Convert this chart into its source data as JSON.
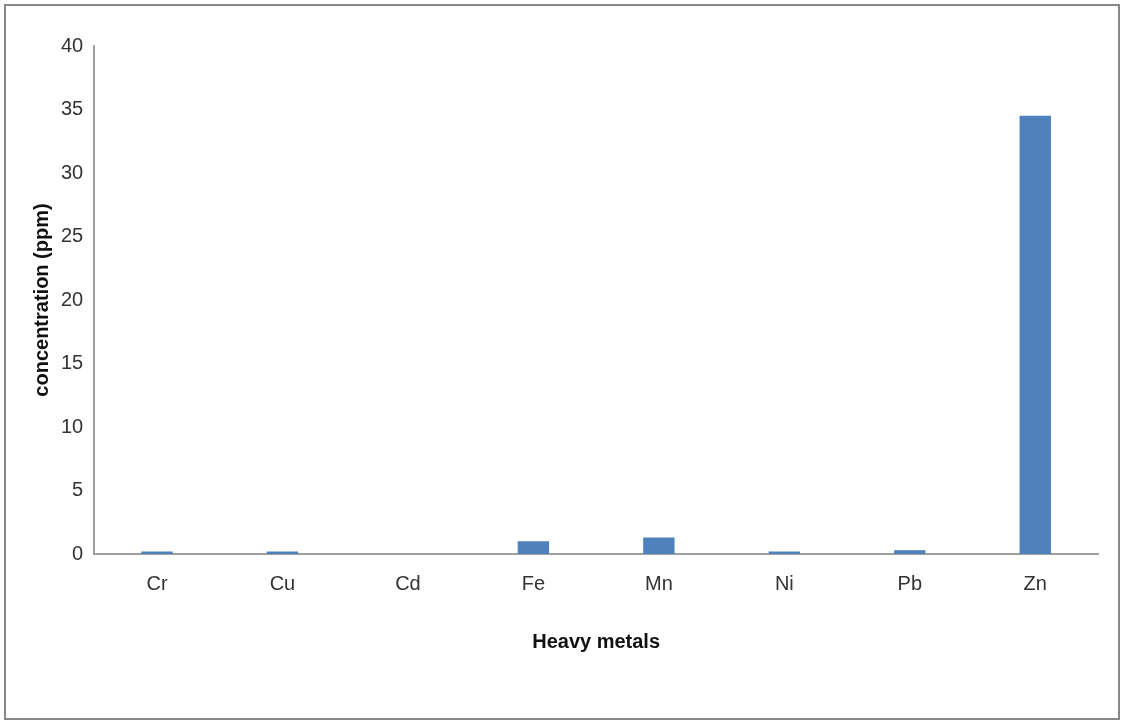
{
  "chart_data": {
    "type": "bar",
    "xlabel": "Heavy metals",
    "ylabel": "concentration (ppm)",
    "categories": [
      "Cr",
      "Cu",
      "Cd",
      "Fe",
      "Mn",
      "Ni",
      "Pb",
      "Zn"
    ],
    "values": [
      0.2,
      0.2,
      0,
      1.0,
      1.3,
      0.2,
      0.3,
      34.5
    ],
    "color": "#4f81bd",
    "ylim": [
      0,
      40
    ],
    "yticks": [
      0,
      5,
      10,
      15,
      20,
      25,
      30,
      35,
      40
    ],
    "grid": false,
    "legend": false
  }
}
